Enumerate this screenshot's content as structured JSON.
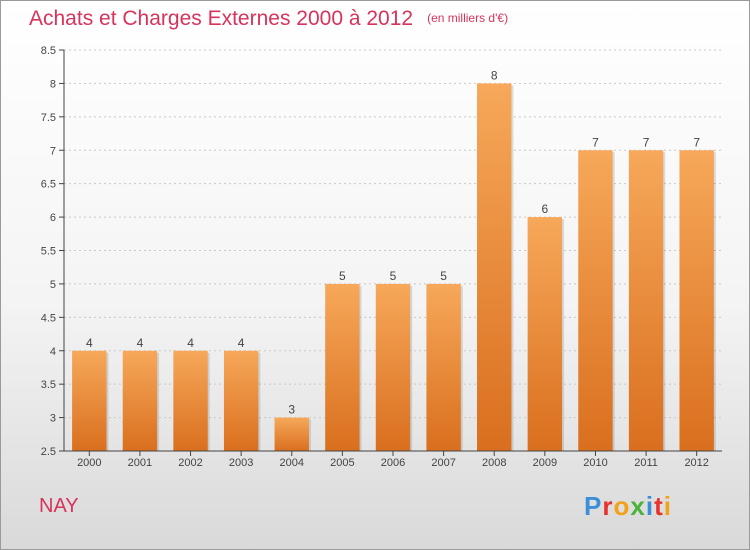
{
  "header": {
    "title": "Achats et Charges Externes 2000 à 2012",
    "unit": "(en milliers d'€)"
  },
  "footer": {
    "commune": "NAY",
    "logo_letters": [
      "P",
      "r",
      "o",
      "x",
      "i",
      "t",
      "i"
    ],
    "logo_colors": [
      "#3a8fd8",
      "#e8322f",
      "#f2a11a",
      "#4bb33a",
      "#3a8fd8",
      "#e8322f",
      "#f2a11a"
    ]
  },
  "colors": {
    "bar_top": "#f7a85a",
    "bar_bottom": "#d96f1e",
    "axis": "#444444",
    "grid": "#c8c8c8",
    "title": "#d8335b"
  },
  "chart_data": {
    "type": "bar",
    "title": "Achats et Charges Externes 2000 à 2012",
    "subtitle": "(en milliers d'€)",
    "xlabel": "",
    "ylabel": "",
    "categories": [
      "2000",
      "2001",
      "2002",
      "2003",
      "2004",
      "2005",
      "2006",
      "2007",
      "2008",
      "2009",
      "2010",
      "2011",
      "2012"
    ],
    "values": [
      4,
      4,
      4,
      4,
      3,
      5,
      5,
      5,
      8,
      6,
      7,
      7,
      7
    ],
    "data_labels": [
      "4",
      "4",
      "4",
      "4",
      "3",
      "5",
      "5",
      "5",
      "8",
      "6",
      "7",
      "7",
      "7"
    ],
    "ylim": [
      2.5,
      8.5
    ],
    "yticks": [
      2.5,
      3,
      3.5,
      4,
      4.5,
      5,
      5.5,
      6,
      6.5,
      7,
      7.5,
      8,
      8.5
    ],
    "ytick_labels": [
      "2.5",
      "3",
      "3.5",
      "4",
      "4.5",
      "5",
      "5.5",
      "6",
      "6.5",
      "7",
      "7.5",
      "8",
      "8.5"
    ],
    "grid": true,
    "legend": "none"
  }
}
